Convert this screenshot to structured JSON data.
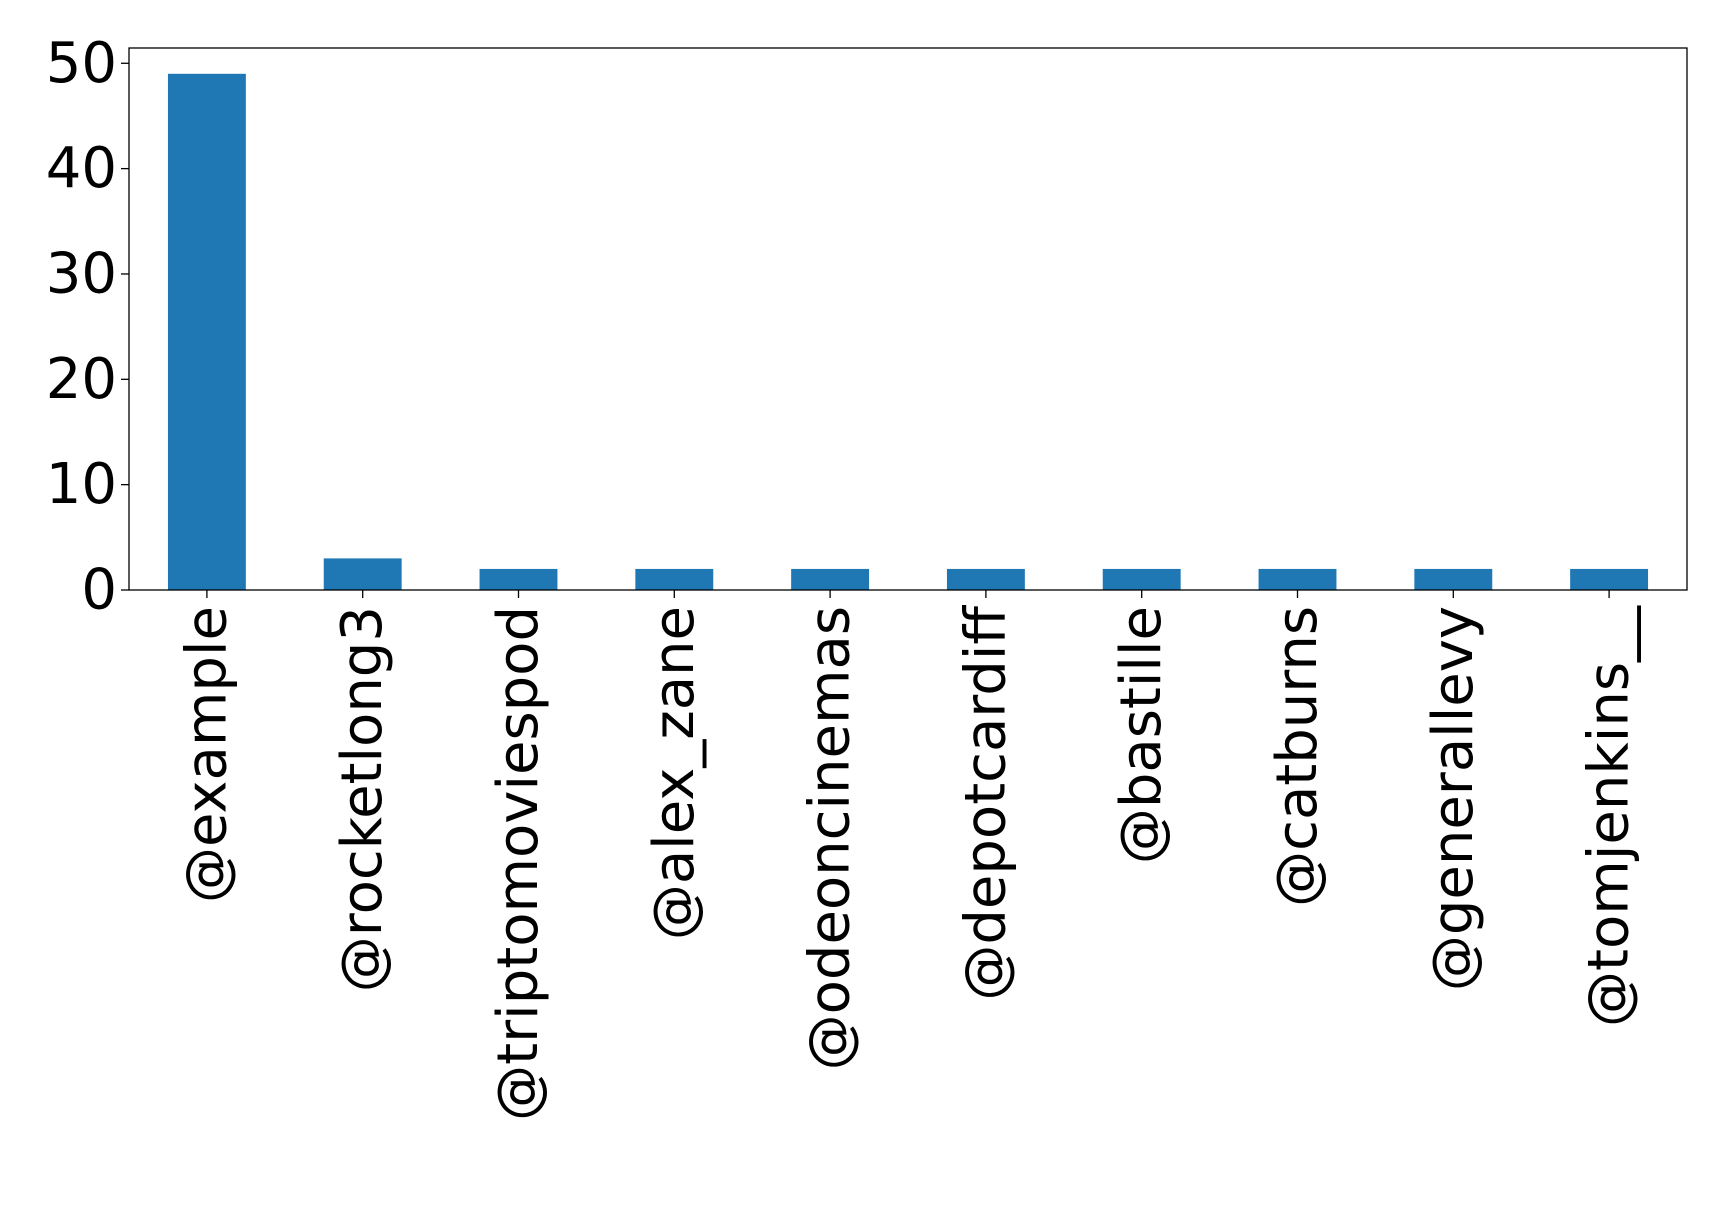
{
  "chart_data": {
    "type": "bar",
    "categories": [
      "@example",
      "@rocketlong3",
      "@triptomoviespod",
      "@alex_zane",
      "@odeoncinemas",
      "@depotcardiff",
      "@bastille",
      "@catburns",
      "@generallevy",
      "@tomjenkins__"
    ],
    "values": [
      49,
      3,
      2,
      2,
      2,
      2,
      2,
      2,
      2,
      2
    ],
    "ylim": [
      0,
      51.45
    ],
    "yticks": [
      0,
      10,
      20,
      30,
      40,
      50
    ],
    "title": "",
    "xlabel": "",
    "ylabel": "",
    "grid": false,
    "colors": {
      "bar": "#1f77b4",
      "axis": "#000000",
      "background": "#ffffff"
    }
  }
}
